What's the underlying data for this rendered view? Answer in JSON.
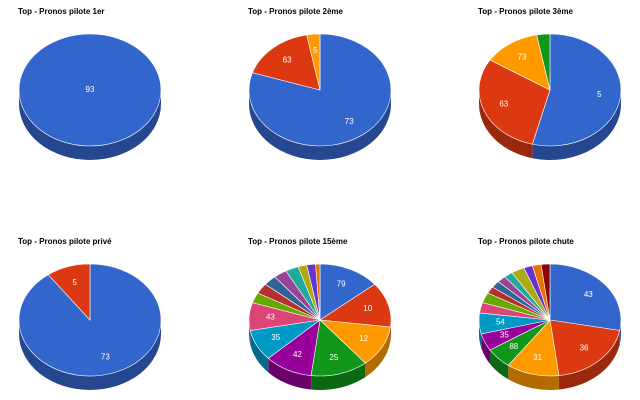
{
  "chart_data": [
    {
      "type": "pie3d",
      "title": "Top - Pronos pilote 1er",
      "categories": [
        "93"
      ],
      "values": [
        100
      ],
      "colors": [
        "#3366cc"
      ]
    },
    {
      "type": "pie3d",
      "title": "Top - Pronos pilote 2ème",
      "categories": [
        "73",
        "63",
        "5"
      ],
      "values": [
        80,
        17,
        3
      ],
      "colors": [
        "#3366cc",
        "#dc3912",
        "#ff9900"
      ]
    },
    {
      "type": "pie3d",
      "title": "Top - Pronos pilote 3ème",
      "categories": [
        "5",
        "63",
        "73",
        null
      ],
      "values": [
        54,
        30,
        13,
        3
      ],
      "colors": [
        "#3366cc",
        "#dc3912",
        "#ff9900",
        "#109618"
      ]
    },
    {
      "type": "pie3d",
      "title": "Top - Pronos pilote privé",
      "categories": [
        "73",
        "5"
      ],
      "values": [
        90,
        10
      ],
      "colors": [
        "#3366cc",
        "#dc3912"
      ]
    },
    {
      "type": "pie3d",
      "title": "Top - Pronos pilote 15ème",
      "categories": [
        "79",
        "10",
        "12",
        "25",
        "42",
        "35",
        "43",
        null,
        null,
        null,
        null,
        null,
        null,
        null,
        null
      ],
      "values": [
        14,
        13,
        12,
        13,
        11,
        9,
        8,
        3,
        3,
        3,
        3,
        3,
        2,
        2,
        1
      ],
      "colors": [
        "#3366cc",
        "#dc3912",
        "#ff9900",
        "#109618",
        "#990099",
        "#0099c6",
        "#dd4477",
        "#66aa00",
        "#b82e2e",
        "#316395",
        "#994499",
        "#22aa99",
        "#aaaa11",
        "#6633cc",
        "#e67300"
      ]
    },
    {
      "type": "pie3d",
      "title": "Top - Pronos pilote chute",
      "categories": [
        "43",
        "36",
        "31",
        "88",
        "35",
        "54",
        null,
        null,
        null,
        null,
        null,
        null,
        null,
        null,
        null,
        null
      ],
      "values": [
        28,
        20,
        12,
        6,
        5,
        6,
        3,
        3,
        2,
        2,
        2,
        2,
        3,
        2,
        2,
        2
      ],
      "colors": [
        "#3366cc",
        "#dc3912",
        "#ff9900",
        "#109618",
        "#990099",
        "#0099c6",
        "#dd4477",
        "#66aa00",
        "#b82e2e",
        "#316395",
        "#994499",
        "#22aa99",
        "#aaaa11",
        "#6633cc",
        "#e67300",
        "#8b0707"
      ]
    }
  ]
}
